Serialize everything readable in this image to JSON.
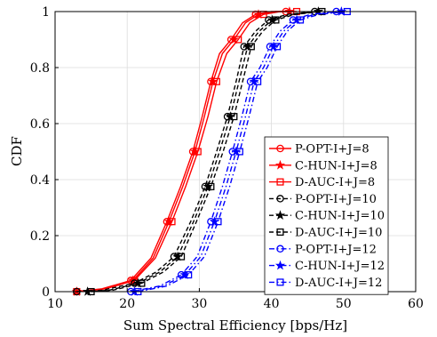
{
  "chart_data": {
    "type": "line",
    "title": "",
    "xlabel": "Sum Spectral Efficiency [bps/Hz]",
    "ylabel": "CDF",
    "xlim": [
      10,
      60
    ],
    "ylim": [
      0,
      1
    ],
    "xticks": [
      "10",
      "20",
      "30",
      "40",
      "50",
      "60"
    ],
    "yticks": [
      "0",
      "0.2",
      "0.4",
      "0.6",
      "0.8",
      "1"
    ],
    "grid": true,
    "legend_position": "lower-right",
    "series": [
      {
        "name": "P-OPT-I+J=8",
        "color": "#ff0000",
        "dash": "solid",
        "marker": "circle",
        "x": [
          13.0,
          16.5,
          20.5,
          23.3,
          25.5,
          27.4,
          29.1,
          30.4,
          31.6,
          32.8,
          34.4,
          36.0,
          37.8,
          40.0,
          42.0
        ],
        "y": [
          0,
          0.01,
          0.04,
          0.12,
          0.25,
          0.375,
          0.5,
          0.625,
          0.75,
          0.85,
          0.9,
          0.96,
          0.99,
          1,
          1
        ]
      },
      {
        "name": "C-HUN-I+J=8",
        "color": "#ff0000",
        "dash": "solid",
        "marker": "star",
        "x": [
          13.0,
          16.8,
          20.8,
          23.6,
          25.8,
          27.7,
          29.4,
          30.7,
          31.9,
          33.2,
          34.8,
          36.4,
          38.2,
          40.6,
          42.5
        ],
        "y": [
          0,
          0.01,
          0.04,
          0.12,
          0.25,
          0.375,
          0.5,
          0.625,
          0.75,
          0.85,
          0.9,
          0.96,
          0.99,
          1,
          1
        ]
      },
      {
        "name": "D-AUC-I+J=8",
        "color": "#ff0000",
        "dash": "solid",
        "marker": "square",
        "x": [
          13.0,
          17.0,
          21.0,
          23.9,
          26.2,
          28.1,
          29.8,
          31.2,
          32.4,
          33.8,
          35.4,
          37.0,
          38.9,
          41.2,
          43.5
        ],
        "y": [
          0,
          0.01,
          0.04,
          0.12,
          0.25,
          0.375,
          0.5,
          0.625,
          0.75,
          0.85,
          0.9,
          0.96,
          0.99,
          1,
          1
        ]
      },
      {
        "name": "P-OPT-I+J=10",
        "color": "#000000",
        "dash": "dashed",
        "marker": "circle",
        "x": [
          13.0,
          16.5,
          21.0,
          24.0,
          26.5,
          28.8,
          30.8,
          32.4,
          33.9,
          35.1,
          36.2,
          37.8,
          39.6,
          42.2,
          46.0
        ],
        "y": [
          0,
          0.005,
          0.03,
          0.07,
          0.125,
          0.25,
          0.375,
          0.5,
          0.625,
          0.75,
          0.875,
          0.93,
          0.97,
          0.99,
          1
        ]
      },
      {
        "name": "C-HUN-I+J=10",
        "color": "#000000",
        "dash": "dashed",
        "marker": "star",
        "x": [
          14.5,
          17.5,
          21.5,
          24.5,
          27.0,
          29.2,
          31.2,
          32.8,
          34.3,
          35.5,
          36.7,
          38.3,
          40.1,
          42.8,
          46.5
        ],
        "y": [
          0,
          0.005,
          0.03,
          0.07,
          0.125,
          0.25,
          0.375,
          0.5,
          0.625,
          0.75,
          0.875,
          0.93,
          0.97,
          0.99,
          1
        ]
      },
      {
        "name": "D-AUC-I+J=10",
        "color": "#000000",
        "dash": "dashed",
        "marker": "square",
        "x": [
          15.0,
          18.0,
          22.0,
          25.0,
          27.5,
          29.6,
          31.6,
          33.3,
          34.8,
          36.0,
          37.2,
          38.8,
          40.6,
          43.3,
          47.0
        ],
        "y": [
          0,
          0.005,
          0.03,
          0.07,
          0.125,
          0.25,
          0.375,
          0.5,
          0.625,
          0.75,
          0.875,
          0.93,
          0.97,
          0.99,
          1
        ]
      },
      {
        "name": "P-OPT-I+J=12",
        "color": "#0000ff",
        "dash": "dashdot",
        "marker": "circle",
        "x": [
          20.5,
          24.5,
          27.5,
          29.7,
          31.6,
          33.2,
          34.6,
          35.9,
          37.1,
          38.4,
          39.8,
          41.2,
          43.0,
          45.4,
          49.0
        ],
        "y": [
          0,
          0.02,
          0.06,
          0.125,
          0.25,
          0.375,
          0.5,
          0.625,
          0.75,
          0.8,
          0.875,
          0.93,
          0.97,
          0.99,
          1
        ]
      },
      {
        "name": "C-HUN-I+J=12",
        "color": "#0000ff",
        "dash": "dashdot",
        "marker": "star",
        "x": [
          21.0,
          25.0,
          28.0,
          30.2,
          32.1,
          33.7,
          35.1,
          36.4,
          37.6,
          38.9,
          40.3,
          41.7,
          43.5,
          46.0,
          49.7
        ],
        "y": [
          0,
          0.02,
          0.06,
          0.125,
          0.25,
          0.375,
          0.5,
          0.625,
          0.75,
          0.8,
          0.875,
          0.93,
          0.97,
          0.99,
          1
        ]
      },
      {
        "name": "D-AUC-I+J=12",
        "color": "#0000ff",
        "dash": "dashdot",
        "marker": "square",
        "x": [
          21.5,
          25.5,
          28.5,
          30.7,
          32.6,
          34.2,
          35.6,
          36.9,
          38.1,
          39.4,
          40.8,
          42.2,
          44.0,
          46.6,
          50.5
        ],
        "y": [
          0,
          0.02,
          0.06,
          0.125,
          0.25,
          0.375,
          0.5,
          0.625,
          0.75,
          0.8,
          0.875,
          0.93,
          0.97,
          0.99,
          1
        ]
      }
    ]
  }
}
